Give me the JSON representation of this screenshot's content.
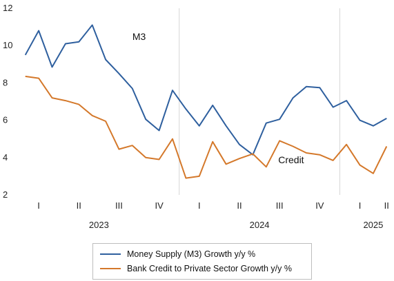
{
  "chart_data": {
    "type": "line",
    "ylim": [
      2,
      12
    ],
    "yticks": [
      2,
      4,
      6,
      8,
      10,
      12
    ],
    "grid": "vertical separators between years",
    "legend_position": "bottom",
    "quarter_labels": [
      {
        "label": "I",
        "x": 1
      },
      {
        "label": "II",
        "x": 4
      },
      {
        "label": "III",
        "x": 7
      },
      {
        "label": "IV",
        "x": 10
      },
      {
        "label": "I",
        "x": 13
      },
      {
        "label": "II",
        "x": 16
      },
      {
        "label": "III",
        "x": 19
      },
      {
        "label": "IV",
        "x": 22
      },
      {
        "label": "I",
        "x": 25
      },
      {
        "label": "II",
        "x": 27
      }
    ],
    "year_labels": [
      {
        "label": "2023",
        "x": 5.5
      },
      {
        "label": "2024",
        "x": 17.5
      },
      {
        "label": "2025",
        "x": 26
      }
    ],
    "year_separators": [
      11.5,
      23.5
    ],
    "x_range": [
      -0.5,
      27.5
    ],
    "annotations": [
      {
        "text": "M3",
        "x": 8,
        "y": 10.3
      },
      {
        "text": "Credit",
        "x": 18.9,
        "y": 3.7
      }
    ],
    "series": [
      {
        "name": "Money Supply (M3) Growth y/y %",
        "color": "#2e5f9e",
        "x": [
          0,
          1,
          2,
          3,
          4,
          5,
          6,
          7,
          8,
          9,
          10,
          11,
          12,
          13,
          14,
          15,
          16,
          17,
          18,
          19,
          20,
          21,
          22,
          23,
          24,
          25,
          26,
          27
        ],
        "values": [
          9.5,
          10.8,
          8.85,
          10.1,
          10.2,
          11.1,
          9.25,
          8.5,
          7.7,
          6.05,
          5.45,
          7.6,
          6.6,
          5.7,
          6.8,
          5.7,
          4.7,
          4.15,
          5.85,
          6.05,
          7.2,
          7.8,
          7.75,
          6.7,
          7.05,
          6.0,
          5.7,
          6.1
        ]
      },
      {
        "name": "Bank Credit to Private Sector Growth y/y %",
        "color": "#d4782a",
        "x": [
          0,
          1,
          2,
          3,
          4,
          5,
          6,
          7,
          8,
          9,
          10,
          11,
          12,
          13,
          14,
          15,
          16,
          17,
          18,
          19,
          20,
          21,
          22,
          23,
          24,
          25,
          26,
          27
        ],
        "values": [
          8.35,
          8.25,
          7.2,
          7.05,
          6.85,
          6.25,
          5.95,
          4.45,
          4.65,
          4.0,
          3.9,
          5.0,
          2.9,
          3.0,
          4.85,
          3.65,
          3.95,
          4.2,
          3.5,
          4.9,
          4.6,
          4.25,
          4.15,
          3.85,
          4.7,
          3.6,
          3.15,
          4.6
        ]
      }
    ]
  }
}
